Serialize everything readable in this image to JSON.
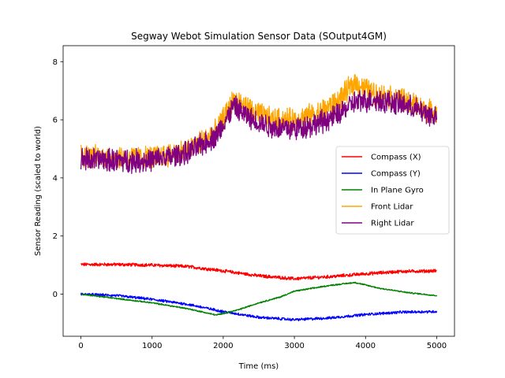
{
  "chart_data": {
    "type": "line",
    "title": "Segway Webot Simulation Sensor Data (SOutput4GM)",
    "xlabel": "Time (ms)",
    "ylabel": "Sensor Reading (scaled to world)",
    "xlim": [
      -250,
      5250
    ],
    "ylim": [
      -1.45,
      8.55
    ],
    "xticks": [
      0,
      1000,
      2000,
      3000,
      4000,
      5000
    ],
    "yticks": [
      0,
      2,
      4,
      6,
      8
    ],
    "legend_position": "center-right",
    "series": [
      {
        "name": "Compass (X)",
        "color": "#ff0000",
        "noise": 0.05,
        "x": [
          0,
          500,
          1000,
          1500,
          2000,
          2500,
          3000,
          3500,
          4000,
          4500,
          5000
        ],
        "values": [
          1.02,
          1.02,
          1.0,
          0.95,
          0.8,
          0.63,
          0.53,
          0.6,
          0.7,
          0.78,
          0.8
        ]
      },
      {
        "name": "Compass (Y)",
        "color": "#0000ff",
        "noise": 0.04,
        "x": [
          0,
          500,
          1000,
          1500,
          2000,
          2500,
          3000,
          3500,
          4000,
          4500,
          5000
        ],
        "values": [
          0.0,
          -0.05,
          -0.18,
          -0.35,
          -0.6,
          -0.8,
          -0.88,
          -0.82,
          -0.7,
          -0.62,
          -0.6
        ]
      },
      {
        "name": "In Plane Gyro",
        "color": "#008000",
        "noise": 0.02,
        "x": [
          0,
          500,
          1000,
          1500,
          1900,
          2200,
          2500,
          2800,
          3000,
          3500,
          3850,
          4200,
          4600,
          5000
        ],
        "values": [
          0.0,
          -0.15,
          -0.3,
          -0.5,
          -0.72,
          -0.55,
          -0.3,
          -0.1,
          0.1,
          0.3,
          0.4,
          0.2,
          0.05,
          -0.05
        ]
      },
      {
        "name": "Front Lidar",
        "color": "#ffa500",
        "noise": 0.35,
        "x": [
          0,
          500,
          1000,
          1500,
          1900,
          2150,
          2400,
          2700,
          3000,
          3300,
          3600,
          3850,
          4100,
          4500,
          5000
        ],
        "values": [
          4.75,
          4.7,
          4.7,
          4.95,
          5.6,
          6.7,
          6.3,
          6.0,
          6.0,
          6.2,
          6.6,
          7.3,
          6.9,
          6.7,
          6.2
        ]
      },
      {
        "name": "Right Lidar",
        "color": "#800080",
        "noise": 0.35,
        "x": [
          0,
          500,
          1000,
          1500,
          1900,
          2150,
          2400,
          2700,
          3000,
          3300,
          3600,
          3850,
          4100,
          4500,
          5000
        ],
        "values": [
          4.65,
          4.6,
          4.6,
          4.85,
          5.45,
          6.45,
          6.0,
          5.75,
          5.7,
          5.85,
          6.15,
          6.6,
          6.7,
          6.55,
          6.1
        ]
      }
    ]
  }
}
